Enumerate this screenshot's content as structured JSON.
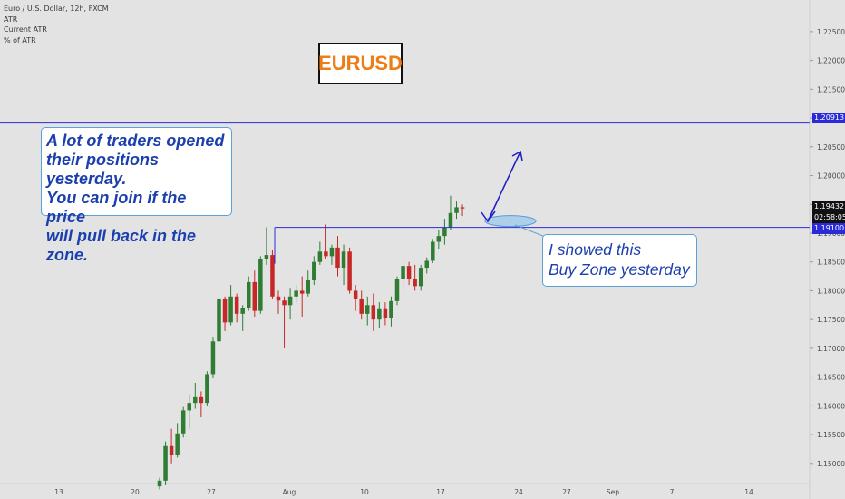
{
  "legend": {
    "symbol": "Euro / U.S. Dollar, 12h, FXCM",
    "line2": "ATR",
    "line3": "Current ATR",
    "line4": "% of ATR"
  },
  "title_box": {
    "text": "EURUSD",
    "text_color": "#ef7d16"
  },
  "notes": {
    "left": [
      "A lot of traders opened",
      "their positions yesterday.",
      "You can join if the price",
      "will pull back in the zone."
    ],
    "right": [
      "I showed this",
      "Buy Zone yesterday"
    ]
  },
  "price_tags": {
    "upper_level": "1.20913",
    "current_price": "1.19432",
    "countdown": "02:58:05",
    "zone_level": "1.19100"
  },
  "colors": {
    "background": "#e3e3e3",
    "bull": "#2e7d32",
    "bear": "#c62828",
    "level_line": "#2c2cd6",
    "note_text": "#1b3fae",
    "zone_fill": "#a9cdeb"
  },
  "chart_data": {
    "type": "candlestick",
    "ylim": [
      1.1465,
      1.2305
    ],
    "y_ticks": [
      "1.15000",
      "1.15500",
      "1.16000",
      "1.16500",
      "1.17000",
      "1.17500",
      "1.18000",
      "1.18500",
      "1.19000",
      "1.19500",
      "1.20000",
      "1.20500",
      "1.21000",
      "1.21500",
      "1.22000",
      "1.22500"
    ],
    "x_ticks": [
      "13",
      "20",
      "27",
      "Aug",
      "10",
      "17",
      "24",
      "27",
      "Sep",
      "7",
      "14"
    ],
    "candles": [
      {
        "o": 1.146,
        "h": 1.1475,
        "l": 1.1455,
        "c": 1.147
      },
      {
        "o": 1.147,
        "h": 1.1538,
        "l": 1.1462,
        "c": 1.153
      },
      {
        "o": 1.153,
        "h": 1.156,
        "l": 1.15,
        "c": 1.1515
      },
      {
        "o": 1.1515,
        "h": 1.157,
        "l": 1.151,
        "c": 1.1552
      },
      {
        "o": 1.1552,
        "h": 1.1598,
        "l": 1.1545,
        "c": 1.1592
      },
      {
        "o": 1.1592,
        "h": 1.162,
        "l": 1.156,
        "c": 1.1605
      },
      {
        "o": 1.1605,
        "h": 1.164,
        "l": 1.1595,
        "c": 1.1615
      },
      {
        "o": 1.1615,
        "h": 1.1625,
        "l": 1.158,
        "c": 1.1605
      },
      {
        "o": 1.1605,
        "h": 1.166,
        "l": 1.16,
        "c": 1.1655
      },
      {
        "o": 1.1655,
        "h": 1.172,
        "l": 1.1648,
        "c": 1.1712
      },
      {
        "o": 1.1712,
        "h": 1.1795,
        "l": 1.1705,
        "c": 1.1785
      },
      {
        "o": 1.1785,
        "h": 1.179,
        "l": 1.173,
        "c": 1.1745
      },
      {
        "o": 1.1745,
        "h": 1.181,
        "l": 1.174,
        "c": 1.179
      },
      {
        "o": 1.179,
        "h": 1.1795,
        "l": 1.1745,
        "c": 1.176
      },
      {
        "o": 1.176,
        "h": 1.1775,
        "l": 1.173,
        "c": 1.177
      },
      {
        "o": 1.177,
        "h": 1.1825,
        "l": 1.1765,
        "c": 1.1815
      },
      {
        "o": 1.1815,
        "h": 1.1835,
        "l": 1.1755,
        "c": 1.1765
      },
      {
        "o": 1.1765,
        "h": 1.186,
        "l": 1.176,
        "c": 1.1855
      },
      {
        "o": 1.1855,
        "h": 1.191,
        "l": 1.1845,
        "c": 1.1862
      },
      {
        "o": 1.1862,
        "h": 1.187,
        "l": 1.1785,
        "c": 1.179
      },
      {
        "o": 1.179,
        "h": 1.18,
        "l": 1.176,
        "c": 1.1783
      },
      {
        "o": 1.1783,
        "h": 1.179,
        "l": 1.17,
        "c": 1.1775
      },
      {
        "o": 1.1775,
        "h": 1.1805,
        "l": 1.175,
        "c": 1.179
      },
      {
        "o": 1.179,
        "h": 1.181,
        "l": 1.178,
        "c": 1.18
      },
      {
        "o": 1.18,
        "h": 1.1825,
        "l": 1.1755,
        "c": 1.1795
      },
      {
        "o": 1.1795,
        "h": 1.1835,
        "l": 1.179,
        "c": 1.1818
      },
      {
        "o": 1.1818,
        "h": 1.186,
        "l": 1.181,
        "c": 1.185
      },
      {
        "o": 1.185,
        "h": 1.1885,
        "l": 1.1845,
        "c": 1.1868
      },
      {
        "o": 1.1868,
        "h": 1.1915,
        "l": 1.1855,
        "c": 1.186
      },
      {
        "o": 1.186,
        "h": 1.188,
        "l": 1.1845,
        "c": 1.1875
      },
      {
        "o": 1.1875,
        "h": 1.1895,
        "l": 1.1825,
        "c": 1.184
      },
      {
        "o": 1.184,
        "h": 1.188,
        "l": 1.181,
        "c": 1.1868
      },
      {
        "o": 1.1868,
        "h": 1.1875,
        "l": 1.1795,
        "c": 1.18
      },
      {
        "o": 1.18,
        "h": 1.181,
        "l": 1.1765,
        "c": 1.1785
      },
      {
        "o": 1.1785,
        "h": 1.18,
        "l": 1.175,
        "c": 1.176
      },
      {
        "o": 1.176,
        "h": 1.179,
        "l": 1.174,
        "c": 1.1775
      },
      {
        "o": 1.1775,
        "h": 1.1795,
        "l": 1.173,
        "c": 1.175
      },
      {
        "o": 1.175,
        "h": 1.178,
        "l": 1.1735,
        "c": 1.1768
      },
      {
        "o": 1.1768,
        "h": 1.178,
        "l": 1.174,
        "c": 1.1752
      },
      {
        "o": 1.1752,
        "h": 1.179,
        "l": 1.1738,
        "c": 1.1782
      },
      {
        "o": 1.1782,
        "h": 1.1825,
        "l": 1.1775,
        "c": 1.182
      },
      {
        "o": 1.182,
        "h": 1.185,
        "l": 1.18,
        "c": 1.1843
      },
      {
        "o": 1.1843,
        "h": 1.185,
        "l": 1.181,
        "c": 1.182
      },
      {
        "o": 1.182,
        "h": 1.1845,
        "l": 1.18,
        "c": 1.1808
      },
      {
        "o": 1.1808,
        "h": 1.1845,
        "l": 1.18,
        "c": 1.184
      },
      {
        "o": 1.184,
        "h": 1.1858,
        "l": 1.183,
        "c": 1.1852
      },
      {
        "o": 1.1852,
        "h": 1.189,
        "l": 1.1848,
        "c": 1.1885
      },
      {
        "o": 1.1885,
        "h": 1.1905,
        "l": 1.1872,
        "c": 1.1895
      },
      {
        "o": 1.1895,
        "h": 1.1925,
        "l": 1.188,
        "c": 1.191
      },
      {
        "o": 1.191,
        "h": 1.1965,
        "l": 1.1905,
        "c": 1.1935
      },
      {
        "o": 1.1935,
        "h": 1.1955,
        "l": 1.1925,
        "c": 1.1945
      },
      {
        "o": 1.1945,
        "h": 1.195,
        "l": 1.193,
        "c": 1.1943
      }
    ],
    "levels": [
      1.20913,
      1.191
    ]
  }
}
